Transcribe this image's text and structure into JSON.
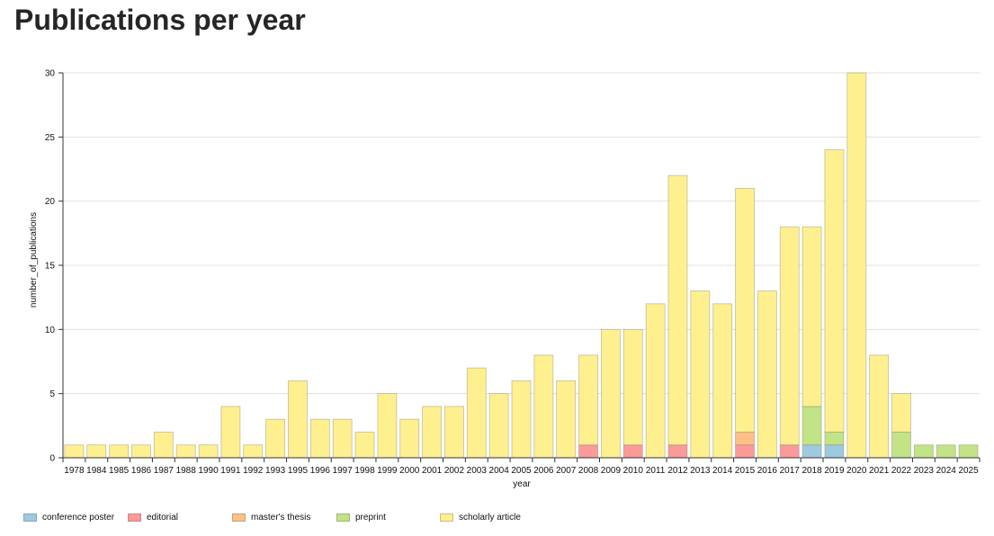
{
  "page": {
    "title": "Publications per year"
  },
  "chart_data": {
    "type": "bar",
    "stacked": true,
    "title": "Publications per year",
    "xlabel": "year",
    "ylabel": "number_of_publications",
    "ylim": [
      0,
      30
    ],
    "yticks": [
      0,
      5,
      10,
      15,
      20,
      25,
      30
    ],
    "grid": true,
    "legend_position": "bottom",
    "categories": [
      "1978",
      "1984",
      "1985",
      "1986",
      "1987",
      "1988",
      "1990",
      "1991",
      "1992",
      "1993",
      "1995",
      "1996",
      "1997",
      "1998",
      "1999",
      "2000",
      "2001",
      "2002",
      "2003",
      "2004",
      "2005",
      "2006",
      "2007",
      "2008",
      "2009",
      "2010",
      "2011",
      "2012",
      "2013",
      "2014",
      "2015",
      "2016",
      "2017",
      "2018",
      "2019",
      "2020",
      "2021",
      "2022",
      "2023",
      "2024",
      "2025"
    ],
    "series": [
      {
        "name": "conference poster",
        "color": "#9ecae1",
        "values": [
          0,
          0,
          0,
          0,
          0,
          0,
          0,
          0,
          0,
          0,
          0,
          0,
          0,
          0,
          0,
          0,
          0,
          0,
          0,
          0,
          0,
          0,
          0,
          0,
          0,
          0,
          0,
          0,
          0,
          0,
          0,
          0,
          0,
          1,
          1,
          0,
          0,
          0,
          0,
          0,
          0
        ]
      },
      {
        "name": "editorial",
        "color": "#fb9a99",
        "values": [
          0,
          0,
          0,
          0,
          0,
          0,
          0,
          0,
          0,
          0,
          0,
          0,
          0,
          0,
          0,
          0,
          0,
          0,
          0,
          0,
          0,
          0,
          0,
          1,
          0,
          1,
          0,
          1,
          0,
          0,
          1,
          0,
          1,
          0,
          0,
          0,
          0,
          0,
          0,
          0,
          0
        ]
      },
      {
        "name": "master's thesis",
        "color": "#fdc086",
        "values": [
          0,
          0,
          0,
          0,
          0,
          0,
          0,
          0,
          0,
          0,
          0,
          0,
          0,
          0,
          0,
          0,
          0,
          0,
          0,
          0,
          0,
          0,
          0,
          0,
          0,
          0,
          0,
          0,
          0,
          0,
          1,
          0,
          0,
          0,
          0,
          0,
          0,
          0,
          0,
          0,
          0
        ]
      },
      {
        "name": "preprint",
        "color": "#c2e386",
        "values": [
          0,
          0,
          0,
          0,
          0,
          0,
          0,
          0,
          0,
          0,
          0,
          0,
          0,
          0,
          0,
          0,
          0,
          0,
          0,
          0,
          0,
          0,
          0,
          0,
          0,
          0,
          0,
          0,
          0,
          0,
          0,
          0,
          0,
          3,
          1,
          0,
          0,
          2,
          1,
          1,
          1
        ]
      },
      {
        "name": "scholarly article",
        "color": "#fff08f",
        "values": [
          1,
          1,
          1,
          1,
          2,
          1,
          1,
          4,
          1,
          3,
          6,
          3,
          3,
          2,
          5,
          3,
          4,
          4,
          7,
          5,
          6,
          8,
          6,
          7,
          10,
          9,
          12,
          21,
          13,
          12,
          19,
          13,
          17,
          14,
          22,
          30,
          8,
          3,
          0,
          0,
          0
        ]
      }
    ]
  }
}
